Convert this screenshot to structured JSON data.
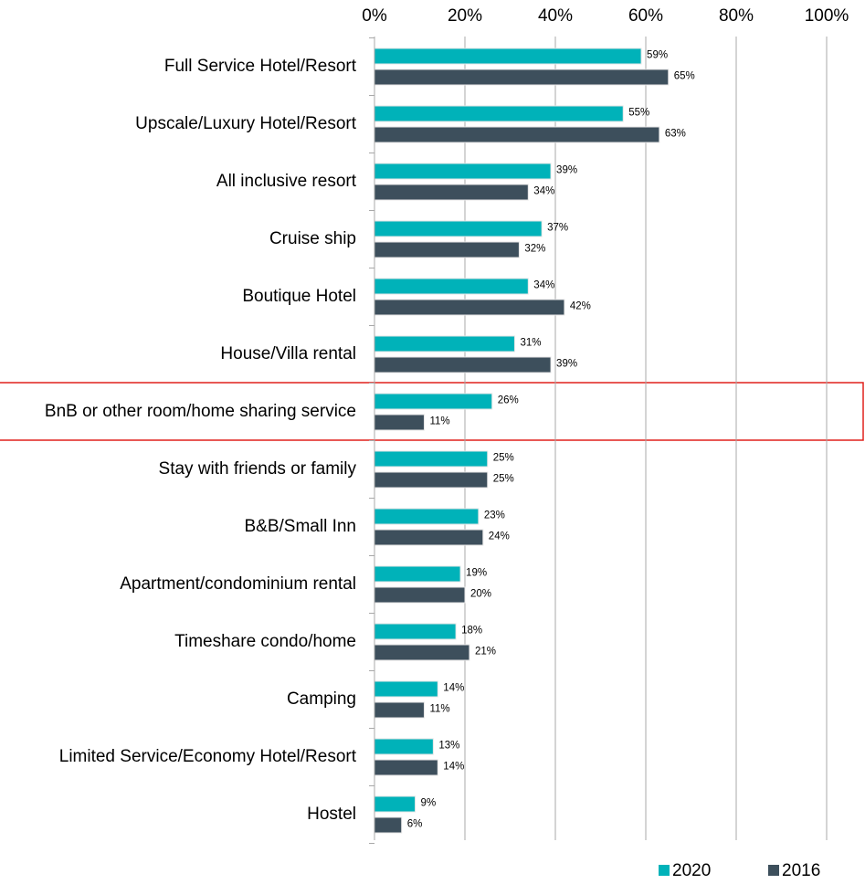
{
  "chart_data": {
    "type": "bar",
    "orientation": "horizontal",
    "categories": [
      "Full Service Hotel/Resort",
      "Upscale/Luxury Hotel/Resort",
      "All inclusive resort",
      "Cruise ship",
      "Boutique Hotel",
      "House/Villa rental",
      "BnB or other room/home sharing service",
      "Stay with friends or family",
      "B&B/Small Inn",
      "Apartment/condominium rental",
      "Timeshare condo/home",
      "Camping",
      "Limited Service/Economy Hotel/Resort",
      "Hostel"
    ],
    "series": [
      {
        "name": "2020",
        "color": "#00b2b9",
        "values": [
          59,
          55,
          39,
          37,
          34,
          31,
          26,
          25,
          23,
          19,
          18,
          14,
          13,
          9
        ],
        "value_labels": [
          "59%",
          "55%",
          "39%",
          "37%",
          "34%",
          "31%",
          "26%",
          "25%",
          "23%",
          "19%",
          "18%",
          "14%",
          "13%",
          "9%"
        ]
      },
      {
        "name": "2016",
        "color": "#3d4f5c",
        "values": [
          65,
          63,
          34,
          32,
          42,
          39,
          11,
          25,
          24,
          20,
          21,
          11,
          14,
          6
        ],
        "value_labels": [
          "65%",
          "63%",
          "34%",
          "32%",
          "42%",
          "39%",
          "11%",
          "25%",
          "24%",
          "20%",
          "21%",
          "11%",
          "14%",
          "6%"
        ]
      }
    ],
    "xlim": [
      0,
      100
    ],
    "xticks": [
      {
        "value": 0,
        "label": "0%"
      },
      {
        "value": 20,
        "label": "20%"
      },
      {
        "value": 40,
        "label": "40%"
      },
      {
        "value": 60,
        "label": "60%"
      },
      {
        "value": 80,
        "label": "80%"
      },
      {
        "value": 100,
        "label": "100%"
      }
    ],
    "grid": true,
    "legend": "bottom right"
  }
}
